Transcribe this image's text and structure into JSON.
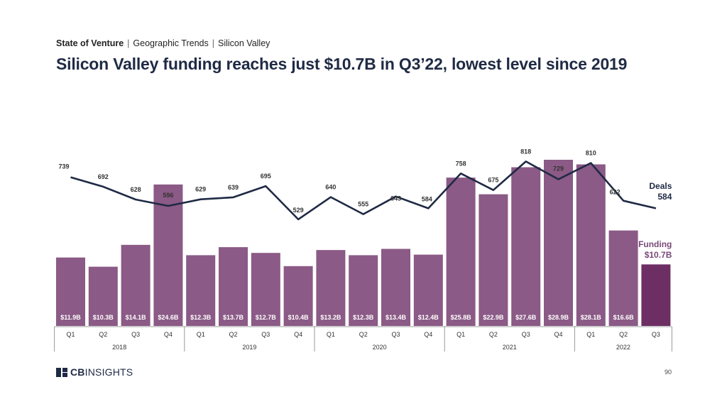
{
  "breadcrumb": {
    "section": "State of Venture",
    "items": [
      "Geographic Trends",
      "Silicon Valley"
    ]
  },
  "title": "Silicon Valley funding reaches just $10.7B in Q3’22, lowest level since 2019",
  "logo": {
    "bold": "CB",
    "light": "INSIGHTS"
  },
  "page_number": "90",
  "colors": {
    "bar": "#8b5a86",
    "bar_highlight": "#6d2e64",
    "line": "#1f2a44",
    "funding_label": "#7a4a78",
    "axis": "#999999"
  },
  "chart_data": {
    "type": "bar",
    "title": "",
    "xlabel": "",
    "ylabel": "",
    "categories": [
      "Q1",
      "Q2",
      "Q3",
      "Q4",
      "Q1",
      "Q2",
      "Q3",
      "Q4",
      "Q1",
      "Q2",
      "Q3",
      "Q4",
      "Q1",
      "Q2",
      "Q3",
      "Q4",
      "Q1",
      "Q2",
      "Q3"
    ],
    "years": [
      {
        "label": "2018",
        "start": 0,
        "count": 4
      },
      {
        "label": "2019",
        "start": 4,
        "count": 4
      },
      {
        "label": "2020",
        "start": 8,
        "count": 4
      },
      {
        "label": "2021",
        "start": 12,
        "count": 4
      },
      {
        "label": "2022",
        "start": 16,
        "count": 3
      }
    ],
    "series": [
      {
        "name": "Funding",
        "type": "bar",
        "values": [
          11.9,
          10.3,
          14.1,
          24.6,
          12.3,
          13.7,
          12.7,
          10.4,
          13.2,
          12.3,
          13.4,
          12.4,
          25.8,
          22.9,
          27.6,
          28.9,
          28.1,
          16.6,
          10.7
        ],
        "labels": [
          "$11.9B",
          "$10.3B",
          "$14.1B",
          "$24.6B",
          "$12.3B",
          "$13.7B",
          "$12.7B",
          "$10.4B",
          "$13.2B",
          "$12.3B",
          "$13.4B",
          "$12.4B",
          "$25.8B",
          "$22.9B",
          "$27.6B",
          "$28.9B",
          "$28.1B",
          "$16.6B",
          ""
        ],
        "end_label": [
          "Funding",
          "$10.7B"
        ]
      },
      {
        "name": "Deals",
        "type": "line",
        "values": [
          739,
          692,
          628,
          596,
          629,
          639,
          695,
          529,
          640,
          555,
          643,
          584,
          758,
          675,
          818,
          729,
          810,
          622,
          584
        ],
        "labels": [
          "739",
          "692",
          "628",
          "596",
          "629",
          "639",
          "695",
          "529",
          "640",
          "555",
          "643",
          "584",
          "758",
          "675",
          "818",
          "729",
          "810",
          "622",
          ""
        ],
        "end_label": [
          "Deals",
          "584"
        ]
      }
    ],
    "highlight_index": 18
  }
}
